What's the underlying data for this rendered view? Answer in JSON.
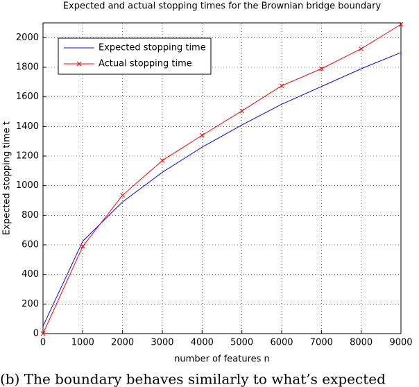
{
  "chart_data": {
    "type": "line",
    "title": "Expected and actual stopping times for the Brownian bridge boundary",
    "x_label": "number of features n",
    "y_label": "Expected stopping time t",
    "x": [
      0,
      1000,
      2000,
      3000,
      4000,
      5000,
      6000,
      7000,
      8000,
      9000
    ],
    "series": [
      {
        "name": "Expected stopping time",
        "color": "#0000ff",
        "marker": "none",
        "values": [
          50,
          625,
          890,
          1090,
          1260,
          1410,
          1550,
          1670,
          1790,
          1900
        ]
      },
      {
        "name": "Actual stopping time",
        "color": "#ff0000",
        "marker": "x",
        "values": [
          0,
          590,
          935,
          1170,
          1340,
          1505,
          1675,
          1790,
          1925,
          2090
        ]
      }
    ],
    "xlim": [
      0,
      9000
    ],
    "ylim": [
      0,
      2100
    ],
    "xticks": [
      0,
      1000,
      2000,
      3000,
      4000,
      5000,
      6000,
      7000,
      8000,
      9000
    ],
    "yticks": [
      0,
      200,
      400,
      600,
      800,
      1000,
      1200,
      1400,
      1600,
      1800,
      2000
    ],
    "grid": true,
    "legend": "upper left"
  },
  "caption": "(b) The boundary behaves similarly to what’s expected"
}
